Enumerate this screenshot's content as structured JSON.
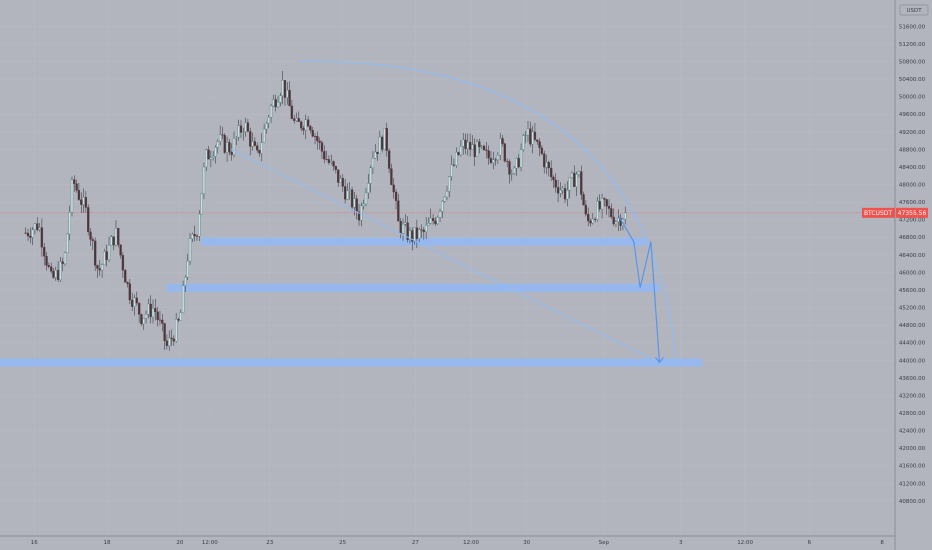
{
  "chart_data": {
    "type": "candlestick",
    "symbol": "BTCUSDT",
    "currency": "USDT",
    "last_price": 47355.56,
    "last_price_label": "47355.56",
    "ylim": [
      40000,
      52200
    ],
    "y_ticks": [
      {
        "v": 51600,
        "label": "51600.00"
      },
      {
        "v": 51200,
        "label": "51200.00"
      },
      {
        "v": 50800,
        "label": "50800.00"
      },
      {
        "v": 50400,
        "label": "50400.00"
      },
      {
        "v": 50000,
        "label": "50000.00"
      },
      {
        "v": 49600,
        "label": "49600.00"
      },
      {
        "v": 49200,
        "label": "49200.00"
      },
      {
        "v": 48800,
        "label": "48800.00"
      },
      {
        "v": 48400,
        "label": "48400.00"
      },
      {
        "v": 48000,
        "label": "48000.00"
      },
      {
        "v": 47600,
        "label": "47600.00"
      },
      {
        "v": 47200,
        "label": "47200.00"
      },
      {
        "v": 46800,
        "label": "46800.00"
      },
      {
        "v": 46400,
        "label": "46400.00"
      },
      {
        "v": 46000,
        "label": "46000.00"
      },
      {
        "v": 45600,
        "label": "45600.00"
      },
      {
        "v": 45200,
        "label": "45200.00"
      },
      {
        "v": 44800,
        "label": "44800.00"
      },
      {
        "v": 44400,
        "label": "44400.00"
      },
      {
        "v": 44000,
        "label": "44000.00"
      },
      {
        "v": 43600,
        "label": "43600.00"
      },
      {
        "v": 43200,
        "label": "43200.00"
      },
      {
        "v": 42800,
        "label": "42800.00"
      },
      {
        "v": 42400,
        "label": "42400.00"
      },
      {
        "v": 42000,
        "label": "42000.00"
      },
      {
        "v": 41600,
        "label": "41600.00"
      },
      {
        "v": 41200,
        "label": "41200.00"
      },
      {
        "v": 40800,
        "label": "40800.00"
      }
    ],
    "x_ticks": [
      "16",
      "18",
      "20",
      "12:00",
      "23",
      "25",
      "27",
      "12:00",
      "30",
      "Sep",
      "3",
      "12:00",
      "6",
      "8"
    ],
    "x_tick_positions_data": [
      0.2,
      1.9,
      3.6,
      4.3,
      5.7,
      7.4,
      9.1,
      10.4,
      11.7,
      13.5,
      15.3,
      16.8,
      18.3,
      20.0
    ],
    "xlim": [
      -0.6,
      20.3
    ],
    "candles_hourly_closes_sketch": [
      [
        0.0,
        46900
      ],
      [
        0.3,
        47100
      ],
      [
        0.6,
        45800
      ],
      [
        0.9,
        46200
      ],
      [
        1.1,
        48100
      ],
      [
        1.4,
        47400
      ],
      [
        1.7,
        46000
      ],
      [
        2.1,
        46900
      ],
      [
        2.4,
        45600
      ],
      [
        2.7,
        45000
      ],
      [
        3.0,
        45200
      ],
      [
        3.3,
        44300
      ],
      [
        3.6,
        44900
      ],
      [
        3.8,
        46500
      ],
      [
        4.0,
        47000
      ],
      [
        4.2,
        48600
      ],
      [
        4.5,
        49000
      ],
      [
        4.8,
        48800
      ],
      [
        5.1,
        49400
      ],
      [
        5.4,
        48600
      ],
      [
        5.7,
        49700
      ],
      [
        6.0,
        50300
      ],
      [
        6.3,
        49300
      ],
      [
        6.6,
        49500
      ],
      [
        6.9,
        48800
      ],
      [
        7.2,
        48300
      ],
      [
        7.5,
        47800
      ],
      [
        7.8,
        47300
      ],
      [
        8.1,
        48700
      ],
      [
        8.4,
        49100
      ],
      [
        8.7,
        47100
      ],
      [
        9.0,
        46800
      ],
      [
        9.3,
        46900
      ],
      [
        9.6,
        47300
      ],
      [
        9.9,
        48200
      ],
      [
        10.2,
        48900
      ],
      [
        10.5,
        48800
      ],
      [
        10.8,
        48600
      ],
      [
        11.1,
        48900
      ],
      [
        11.4,
        48200
      ],
      [
        11.7,
        49200
      ],
      [
        12.0,
        48800
      ],
      [
        12.3,
        48100
      ],
      [
        12.6,
        47800
      ],
      [
        12.9,
        48300
      ],
      [
        13.1,
        47100
      ],
      [
        13.3,
        47400
      ],
      [
        13.5,
        47500
      ],
      [
        13.8,
        47200
      ],
      [
        14.0,
        47356
      ]
    ],
    "support_zones": [
      {
        "price": 46700,
        "x_start": 4.1,
        "x_end": 14.5
      },
      {
        "price": 45650,
        "x_start": 3.3,
        "x_end": 14.8
      },
      {
        "price": 43950,
        "x_start": -0.6,
        "x_end": 15.8
      }
    ],
    "drawings": {
      "trendline": {
        "from": [
          4.8,
          48800
        ],
        "to": [
          14.8,
          43950
        ]
      },
      "arc": {
        "from": [
          6.4,
          50800
        ],
        "to": [
          15.2,
          43950
        ]
      },
      "projection_path": [
        [
          13.85,
          47280
        ],
        [
          14.2,
          46700
        ],
        [
          14.35,
          45650
        ],
        [
          14.6,
          46700
        ],
        [
          14.8,
          43950
        ]
      ]
    },
    "colors": {
      "background": "#b2b5be",
      "up": "#26a69a",
      "down": "#ef5350",
      "zone": "#90b8f8",
      "drawing": "#8fbcf5",
      "price_line": "#ef5350"
    }
  }
}
